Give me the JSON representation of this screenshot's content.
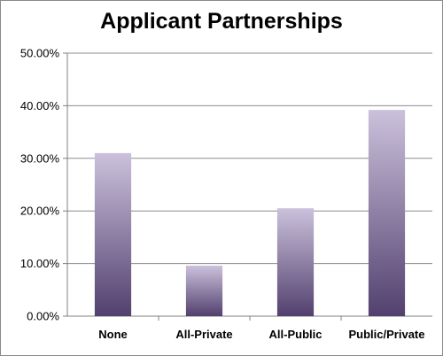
{
  "chart_data": {
    "type": "bar",
    "title": "Applicant Partnerships",
    "xlabel": "",
    "ylabel": "",
    "categories": [
      "None",
      "All-Private",
      "All-Public",
      "Public/Private"
    ],
    "values": [
      31.0,
      9.6,
      20.5,
      39.2
    ],
    "value_unit": "percent",
    "ylim": [
      0,
      50
    ],
    "yticks": [
      0,
      10,
      20,
      30,
      40,
      50
    ],
    "ytick_labels": [
      "0.00%",
      "10.00%",
      "20.00%",
      "30.00%",
      "40.00%",
      "50.00%"
    ],
    "grid": true,
    "legend": "none",
    "colors": {
      "bar_top": "#cbc1dc",
      "bar_bottom": "#52406e",
      "grid": "#8c8c8c",
      "frame": "#8a8a8a"
    }
  }
}
